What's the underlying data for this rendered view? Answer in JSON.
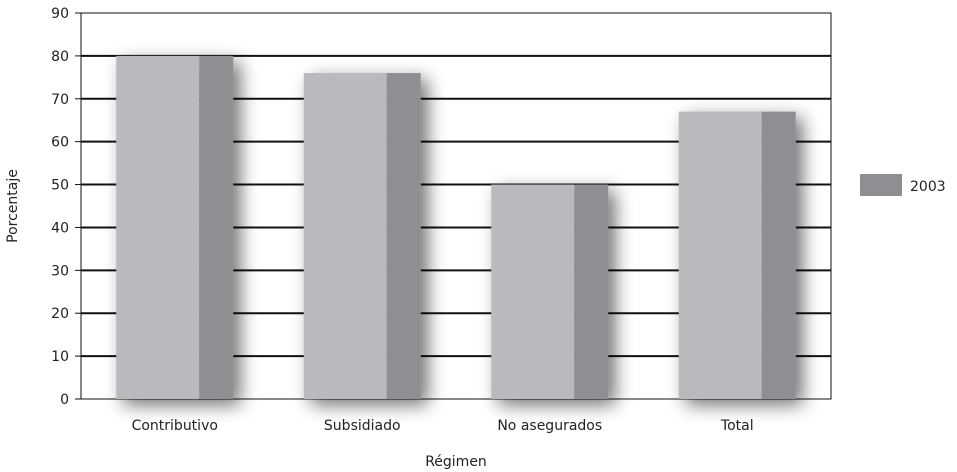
{
  "chart_data": {
    "type": "bar",
    "title": "",
    "xlabel": "Régimen",
    "ylabel": "Porcentaje",
    "ylim": [
      0,
      90
    ],
    "yticks": [
      0,
      10,
      20,
      30,
      40,
      50,
      60,
      70,
      80,
      90
    ],
    "categories": [
      "Contributivo",
      "Subsidiado",
      "No asegurados",
      "Total"
    ],
    "series": [
      {
        "name": "2003",
        "values": [
          80,
          76,
          50,
          67
        ]
      }
    ],
    "grid": true,
    "legend_position": "right",
    "colors": {
      "bar_front": "#b9babd",
      "bar_side": "#8e8f92",
      "grid": "#111111",
      "legend_swatch": "#8e8f92"
    }
  }
}
